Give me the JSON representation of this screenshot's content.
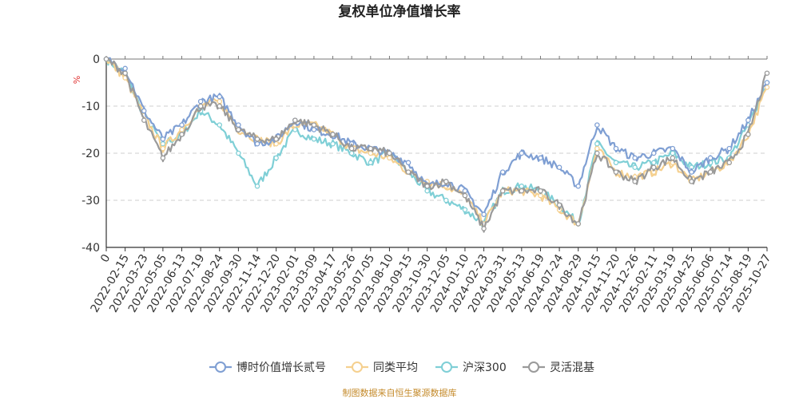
{
  "chart_data": {
    "type": "line",
    "title": "复权单位净值增长率",
    "ylabel": "%",
    "xlabel": "",
    "ylim": [
      -40,
      0
    ],
    "yticks": [
      0,
      -10,
      -20,
      -30,
      -40
    ],
    "ytick_labels": [
      "0",
      "-10",
      "-20",
      "-30",
      "-40"
    ],
    "categories": [
      "0",
      "2022-02-15",
      "2022-03-23",
      "2022-05-05",
      "2022-06-13",
      "2022-07-19",
      "2022-08-24",
      "2022-09-30",
      "2022-11-14",
      "2022-12-20",
      "2023-02-01",
      "2023-03-09",
      "2023-04-17",
      "2023-05-26",
      "2023-07-05",
      "2023-08-10",
      "2023-09-15",
      "2023-10-30",
      "2023-12-05",
      "2024-01-10",
      "2024-02-23",
      "2024-03-31",
      "2024-05-13",
      "2024-06-19",
      "2024-07-24",
      "2024-08-29",
      "2024-10-15",
      "2024-11-20",
      "2024-12-26",
      "2025-02-11",
      "2025-03-19",
      "2025-04-25",
      "2025-06-06",
      "2025-07-14",
      "2025-08-19",
      "2025-10-27"
    ],
    "series": [
      {
        "name": "博时价值增长贰号",
        "color": "#7f9fd3",
        "values": [
          0,
          -2,
          -11,
          -17,
          -14,
          -9,
          -8,
          -14,
          -18,
          -17,
          -13,
          -15,
          -16,
          -18,
          -19,
          -20,
          -22,
          -27,
          -26,
          -28,
          -33,
          -24,
          -20,
          -21,
          -23,
          -27,
          -14,
          -19,
          -21,
          -20,
          -19,
          -24,
          -21,
          -19,
          -13,
          -5
        ]
      },
      {
        "name": "同类平均",
        "color": "#f5d08f",
        "values": [
          0,
          -4,
          -12,
          -19,
          -15,
          -10,
          -9,
          -15,
          -17,
          -18,
          -14,
          -14,
          -16,
          -19,
          -20,
          -21,
          -24,
          -26,
          -27,
          -29,
          -35,
          -28,
          -28,
          -29,
          -32,
          -35,
          -19,
          -24,
          -25,
          -24,
          -22,
          -26,
          -24,
          -22,
          -16,
          -6
        ]
      },
      {
        "name": "沪深300",
        "color": "#7fcfd6",
        "values": [
          0,
          -3,
          -12,
          -18,
          -16,
          -11,
          -14,
          -20,
          -27,
          -21,
          -15,
          -17,
          -18,
          -20,
          -22,
          -20,
          -24,
          -28,
          -30,
          -32,
          -35,
          -28,
          -27,
          -28,
          -31,
          -35,
          -18,
          -22,
          -23,
          -22,
          -20,
          -23,
          -22,
          -21,
          -14,
          -5
        ]
      },
      {
        "name": "灵活混基",
        "color": "#9a9a9a",
        "values": [
          0,
          -3,
          -13,
          -21,
          -16,
          -10,
          -10,
          -15,
          -17,
          -17,
          -13,
          -14,
          -16,
          -19,
          -19,
          -20,
          -24,
          -27,
          -26,
          -29,
          -36,
          -28,
          -28,
          -28,
          -31,
          -35,
          -20,
          -24,
          -26,
          -23,
          -21,
          -26,
          -24,
          -22,
          -16,
          -3
        ]
      }
    ],
    "legend_position": "bottom",
    "grid": true
  },
  "footer": {
    "source": "制图数据来自恒生聚源数据库"
  }
}
